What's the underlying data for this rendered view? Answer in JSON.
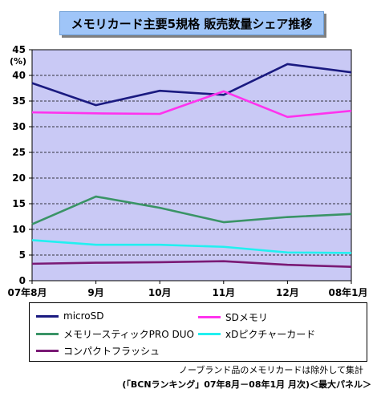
{
  "chart_data": {
    "type": "line",
    "title": "メモリカード主要5規格  販売数量シェア推移",
    "ylabel": "(%)",
    "xlabel": "",
    "categories": [
      "07年8月",
      "9月",
      "10月",
      "11月",
      "12月",
      "08年1月"
    ],
    "ylim": [
      0,
      45
    ],
    "yticks": [
      0,
      5,
      10,
      15,
      20,
      25,
      30,
      35,
      40,
      45
    ],
    "grid": true,
    "legend_placement": "bottom",
    "plot_background": "#c9c9f5",
    "series": [
      {
        "name": "microSD",
        "color": "#1a1a80",
        "values": [
          38.5,
          34.2,
          37.0,
          36.2,
          42.2,
          40.6
        ]
      },
      {
        "name": "SDメモリ",
        "color": "#ff33ee",
        "values": [
          32.8,
          32.6,
          32.5,
          36.9,
          31.9,
          33.1
        ]
      },
      {
        "name": "メモリースティックPRO DUO",
        "color": "#3a9466",
        "values": [
          11.0,
          16.4,
          14.2,
          11.4,
          12.4,
          13.0
        ]
      },
      {
        "name": "xDピクチャーカード",
        "color": "#22f0f0",
        "values": [
          7.9,
          7.0,
          7.0,
          6.6,
          5.5,
          5.4
        ]
      },
      {
        "name": "コンパクトフラッシュ",
        "color": "#7a1a75",
        "values": [
          3.3,
          3.5,
          3.6,
          3.8,
          3.1,
          2.7
        ]
      }
    ]
  },
  "footer": {
    "note": "ノーブランド品のメモリカードは除外して集計",
    "source": "(「BCNランキング」07年8月－08年1月 月次)＜最大パネル＞"
  }
}
